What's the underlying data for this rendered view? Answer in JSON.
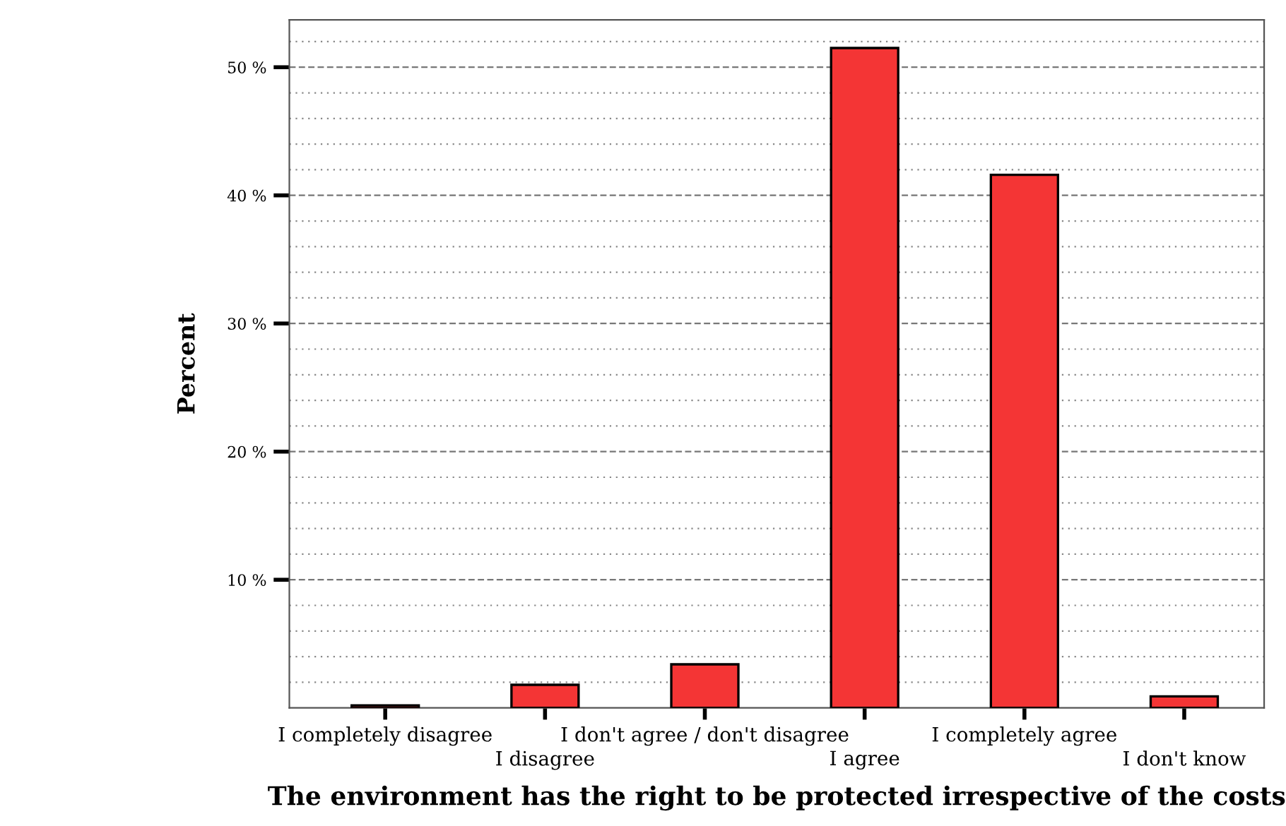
{
  "chart_data": {
    "type": "bar",
    "categories": [
      "I completely disagree",
      "I disagree",
      "I don't agree / don't disagree",
      "I agree",
      "I completely agree",
      "I don't know"
    ],
    "values": [
      0.2,
      1.8,
      3.4,
      51.5,
      41.6,
      0.9
    ],
    "color": "#f43535",
    "xlabel": "The environment has the right to be protected irrespective of the costs",
    "ylabel": "Percent",
    "ylim": [
      0,
      53.7
    ],
    "yticks": [
      {
        "value": 2,
        "label": null
      },
      {
        "value": 4,
        "label": null
      },
      {
        "value": 6,
        "label": null
      },
      {
        "value": 8,
        "label": null
      },
      {
        "value": 10,
        "label": "10 %"
      },
      {
        "value": 12,
        "label": null
      },
      {
        "value": 14,
        "label": null
      },
      {
        "value": 16,
        "label": null
      },
      {
        "value": 18,
        "label": null
      },
      {
        "value": 20,
        "label": "20 %"
      },
      {
        "value": 22,
        "label": null
      },
      {
        "value": 24,
        "label": null
      },
      {
        "value": 26,
        "label": null
      },
      {
        "value": 28,
        "label": null
      },
      {
        "value": 30,
        "label": "30 %"
      },
      {
        "value": 32,
        "label": null
      },
      {
        "value": 34,
        "label": null
      },
      {
        "value": 36,
        "label": null
      },
      {
        "value": 38,
        "label": null
      },
      {
        "value": 40,
        "label": "40 %"
      },
      {
        "value": 42,
        "label": null
      },
      {
        "value": 44,
        "label": null
      },
      {
        "value": 46,
        "label": null
      },
      {
        "value": 48,
        "label": null
      },
      {
        "value": 50,
        "label": "50 %"
      },
      {
        "value": 52,
        "label": null
      }
    ],
    "grid": "y"
  }
}
